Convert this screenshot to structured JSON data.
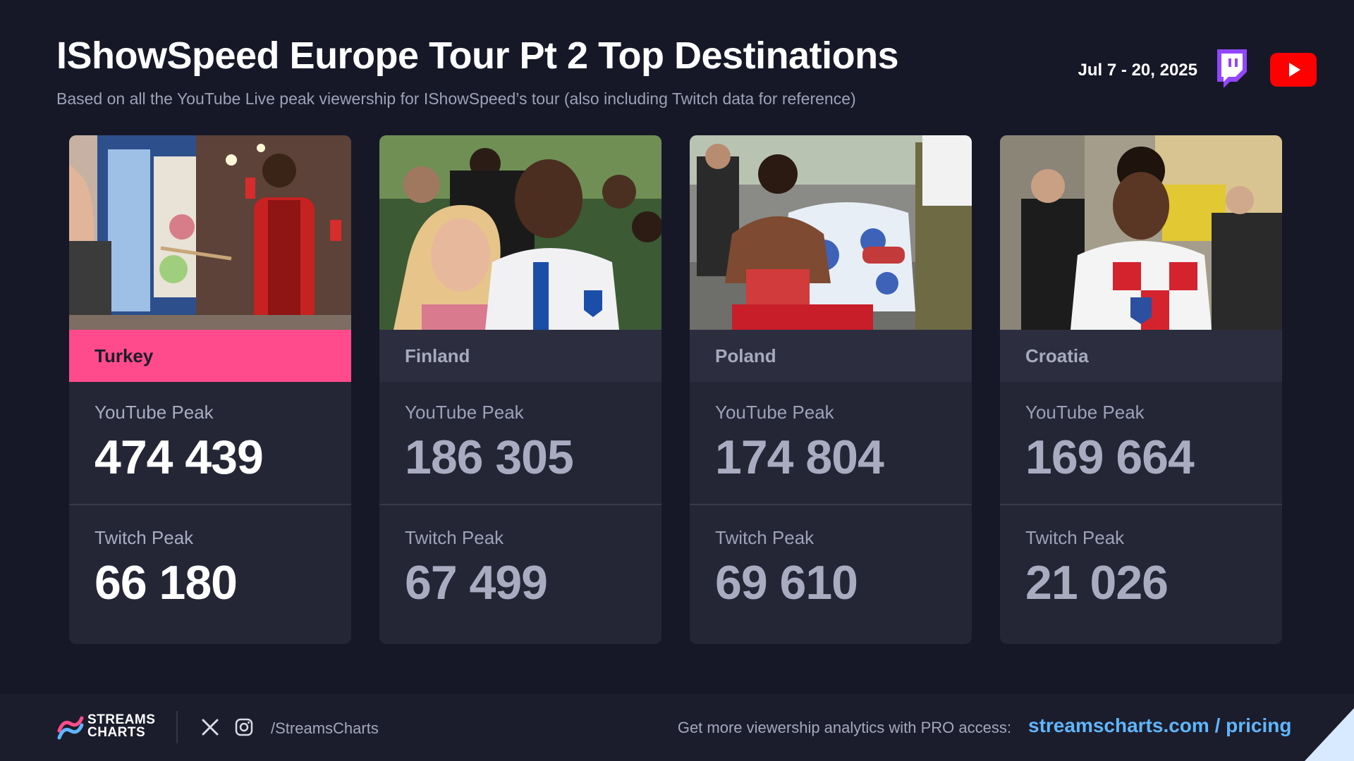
{
  "header": {
    "title": "IShowSpeed Europe Tour Pt 2 Top Destinations",
    "subtitle": "Based on all the YouTube Live peak viewership for IShowSpeed’s tour (also including Twitch data for reference)",
    "date_range": "Jul 7 - 20, 2025",
    "platform_icons": [
      "twitch-icon",
      "youtube-icon"
    ]
  },
  "cards": [
    {
      "country": "Turkey",
      "youtube_label": "YouTube Peak",
      "youtube_peak": "474 439",
      "twitch_label": "Twitch Peak",
      "twitch_peak": "66 180",
      "highlighted": true
    },
    {
      "country": "Finland",
      "youtube_label": "YouTube Peak",
      "youtube_peak": "186 305",
      "twitch_label": "Twitch Peak",
      "twitch_peak": "67 499",
      "highlighted": false
    },
    {
      "country": "Poland",
      "youtube_label": "YouTube Peak",
      "youtube_peak": "174 804",
      "twitch_label": "Twitch Peak",
      "twitch_peak": "69 610",
      "highlighted": false
    },
    {
      "country": "Croatia",
      "youtube_label": "YouTube Peak",
      "youtube_peak": "169 664",
      "twitch_label": "Twitch Peak",
      "twitch_peak": "21 026",
      "highlighted": false
    }
  ],
  "footer": {
    "brand_line1": "STREAMS",
    "brand_line2": "CHARTS",
    "social_handle": "/StreamsCharts",
    "promo_text": "Get more viewership analytics with PRO access:",
    "link_text": "streamscharts.com / pricing"
  },
  "colors": {
    "background": "#161827",
    "card": "#242636",
    "highlight": "#ff4b8b",
    "link": "#5fb6ff",
    "twitch": "#9146ff",
    "youtube": "#ff0000"
  }
}
